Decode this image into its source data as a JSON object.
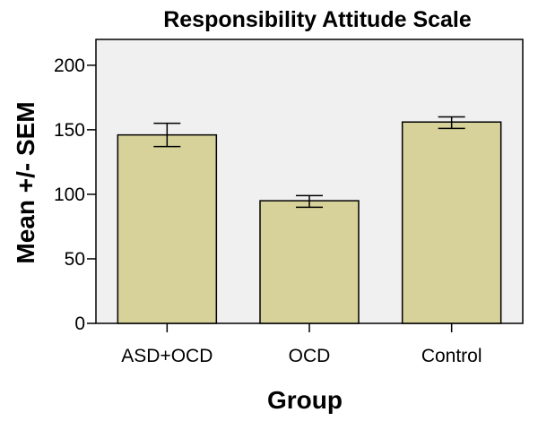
{
  "chart_data": {
    "type": "bar",
    "title": "Responsibility Attitude Scale",
    "xlabel": "Group",
    "ylabel": "Mean +/- SEM",
    "categories": [
      "ASD+OCD",
      "OCD",
      "Control"
    ],
    "values": [
      146,
      95,
      156
    ],
    "error_low": [
      137,
      90,
      151
    ],
    "error_high": [
      155,
      99,
      160
    ],
    "ylim": [
      0,
      220
    ],
    "yticks": [
      0,
      50,
      100,
      150,
      200
    ],
    "grid": false,
    "legend": "none",
    "colors": {
      "bar_fill": "#d6d29a",
      "bar_stroke": "#000000",
      "plot_background": "#f0f0f0"
    }
  }
}
